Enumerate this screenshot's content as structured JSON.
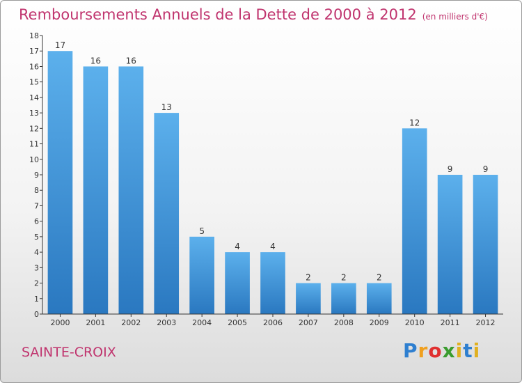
{
  "chart_data": {
    "type": "bar",
    "title": "Remboursements Annuels de la Dette de 2000 à 2012",
    "subtitle": "(en milliers d'€)",
    "categories": [
      "2000",
      "2001",
      "2002",
      "2003",
      "2004",
      "2005",
      "2006",
      "2007",
      "2008",
      "2009",
      "2010",
      "2011",
      "2012"
    ],
    "values": [
      17,
      16,
      16,
      13,
      5,
      4,
      4,
      2,
      2,
      2,
      12,
      9,
      9
    ],
    "ylim": [
      0,
      18
    ],
    "yticks": [
      0,
      1,
      2,
      3,
      4,
      5,
      6,
      7,
      8,
      9,
      10,
      11,
      12,
      13,
      14,
      15,
      16,
      17,
      18
    ],
    "bar_color": "#4a9de0",
    "grid": false
  },
  "footer": {
    "commune": "SAINTE-CROIX",
    "brand": "Proxiti"
  }
}
